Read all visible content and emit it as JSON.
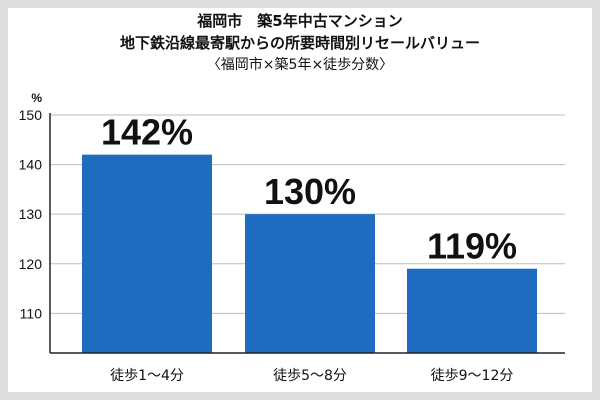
{
  "chart_data": {
    "type": "bar",
    "title_lines": [
      "福岡市　築5年中古マンション",
      "地下鉄沿線最寄駅からの所要時間別リセールバリュー",
      "〈福岡市×築5年×徒歩分数〉"
    ],
    "unit_label": "%",
    "categories": [
      "徒歩1〜4分",
      "徒歩5〜8分",
      "徒歩9〜12分"
    ],
    "values": [
      142,
      130,
      119
    ],
    "data_labels": [
      "142%",
      "130%",
      "119%"
    ],
    "ylim": [
      102,
      150
    ],
    "yticks": [
      110,
      120,
      130,
      140,
      150
    ],
    "grid": true,
    "colors": {
      "bar": "#1f6bbf",
      "grid": "#bdbdbd",
      "axis": "#222222"
    }
  }
}
